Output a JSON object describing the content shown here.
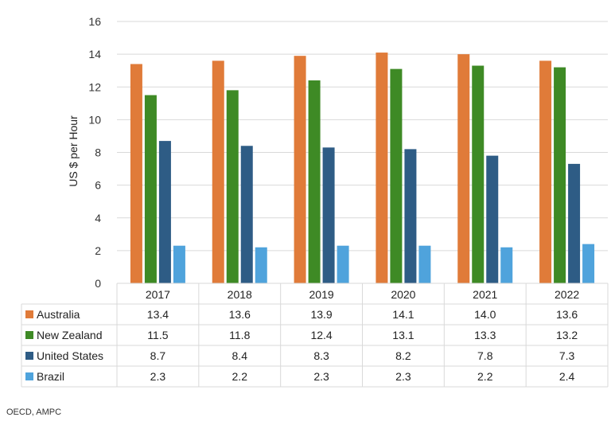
{
  "chart_data": {
    "type": "bar",
    "categories": [
      "2017",
      "2018",
      "2019",
      "2020",
      "2021",
      "2022"
    ],
    "series": [
      {
        "name": "Australia",
        "color": "#e07b39",
        "values": [
          13.4,
          13.6,
          13.9,
          14.1,
          14.0,
          13.6
        ]
      },
      {
        "name": "New Zealand",
        "color": "#3e8a25",
        "values": [
          11.5,
          11.8,
          12.4,
          13.1,
          13.3,
          13.2
        ]
      },
      {
        "name": "United States",
        "color": "#2e5c85",
        "values": [
          8.7,
          8.4,
          8.3,
          8.2,
          7.8,
          7.3
        ]
      },
      {
        "name": "Brazil",
        "color": "#4fa3dc",
        "values": [
          2.3,
          2.2,
          2.3,
          2.3,
          2.2,
          2.4
        ]
      }
    ],
    "title": "",
    "xlabel": "",
    "ylabel": "US $ per Hour",
    "ylim": [
      0,
      16
    ],
    "yticks": [
      0,
      2,
      4,
      6,
      8,
      10,
      12,
      14,
      16
    ],
    "grid": true,
    "legend": "data-table-left",
    "cell_decimals": 1
  },
  "source": "OECD, AMPC"
}
